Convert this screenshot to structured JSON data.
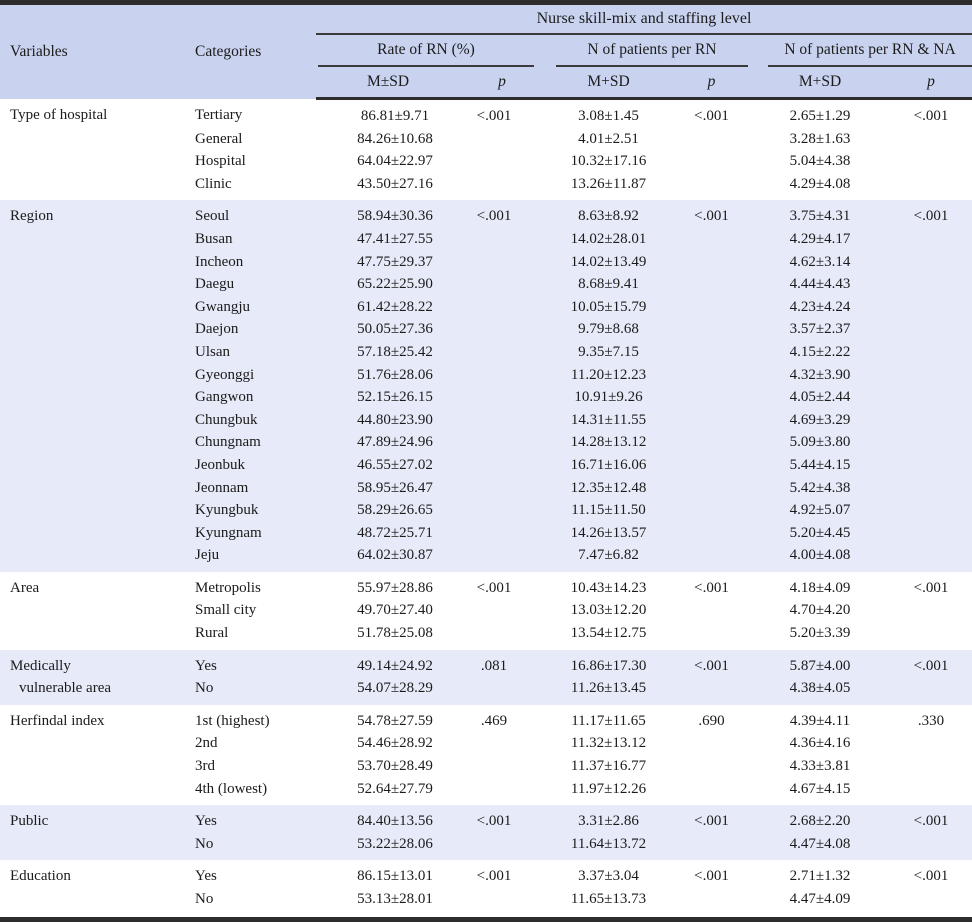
{
  "table": {
    "title_header": "Nurse skill-mix and staffing level",
    "col_headers": {
      "variables": "Variables",
      "categories": "Categories"
    },
    "groups": [
      {
        "label": "Rate of RN (%)",
        "sub": [
          "M±SD",
          "p"
        ]
      },
      {
        "label": "N of patients per RN",
        "sub": [
          "M+SD",
          "p"
        ]
      },
      {
        "label": "N of patients per RN & NA",
        "sub": [
          "M+SD",
          "p"
        ]
      }
    ],
    "sections": [
      {
        "variable_lines": [
          "Type of hospital"
        ],
        "shaded": false,
        "p": [
          "<.001",
          "<.001",
          "<.001"
        ],
        "rows": [
          {
            "category": "Tertiary",
            "values": [
              "86.81±9.71",
              "3.08±1.45",
              "2.65±1.29"
            ]
          },
          {
            "category": "General",
            "values": [
              "84.26±10.68",
              "4.01±2.51",
              "3.28±1.63"
            ]
          },
          {
            "category": "Hospital",
            "values": [
              "64.04±22.97",
              "10.32±17.16",
              "5.04±4.38"
            ]
          },
          {
            "category": "Clinic",
            "values": [
              "43.50±27.16",
              "13.26±11.87",
              "4.29±4.08"
            ]
          }
        ]
      },
      {
        "variable_lines": [
          "Region"
        ],
        "shaded": true,
        "p": [
          "<.001",
          "<.001",
          "<.001"
        ],
        "rows": [
          {
            "category": "Seoul",
            "values": [
              "58.94±30.36",
              "8.63±8.92",
              "3.75±4.31"
            ]
          },
          {
            "category": "Busan",
            "values": [
              "47.41±27.55",
              "14.02±28.01",
              "4.29±4.17"
            ]
          },
          {
            "category": "Incheon",
            "values": [
              "47.75±29.37",
              "14.02±13.49",
              "4.62±3.14"
            ]
          },
          {
            "category": "Daegu",
            "values": [
              "65.22±25.90",
              "8.68±9.41",
              "4.44±4.43"
            ]
          },
          {
            "category": "Gwangju",
            "values": [
              "61.42±28.22",
              "10.05±15.79",
              "4.23±4.24"
            ]
          },
          {
            "category": "Daejon",
            "values": [
              "50.05±27.36",
              "9.79±8.68",
              "3.57±2.37"
            ]
          },
          {
            "category": "Ulsan",
            "values": [
              "57.18±25.42",
              "9.35±7.15",
              "4.15±2.22"
            ]
          },
          {
            "category": "Gyeonggi",
            "values": [
              "51.76±28.06",
              "11.20±12.23",
              "4.32±3.90"
            ]
          },
          {
            "category": "Gangwon",
            "values": [
              "52.15±26.15",
              "10.91±9.26",
              "4.05±2.44"
            ]
          },
          {
            "category": "Chungbuk",
            "values": [
              "44.80±23.90",
              "14.31±11.55",
              "4.69±3.29"
            ]
          },
          {
            "category": "Chungnam",
            "values": [
              "47.89±24.96",
              "14.28±13.12",
              "5.09±3.80"
            ]
          },
          {
            "category": "Jeonbuk",
            "values": [
              "46.55±27.02",
              "16.71±16.06",
              "5.44±4.15"
            ]
          },
          {
            "category": "Jeonnam",
            "values": [
              "58.95±26.47",
              "12.35±12.48",
              "5.42±4.38"
            ]
          },
          {
            "category": "Kyungbuk",
            "values": [
              "58.29±26.65",
              "11.15±11.50",
              "4.92±5.07"
            ]
          },
          {
            "category": "Kyungnam",
            "values": [
              "48.72±25.71",
              "14.26±13.57",
              "5.20±4.45"
            ]
          },
          {
            "category": "Jeju",
            "values": [
              "64.02±30.87",
              "7.47±6.82",
              "4.00±4.08"
            ]
          }
        ]
      },
      {
        "variable_lines": [
          "Area"
        ],
        "shaded": false,
        "p": [
          "<.001",
          "<.001",
          "<.001"
        ],
        "rows": [
          {
            "category": "Metropolis",
            "values": [
              "55.97±28.86",
              "10.43±14.23",
              "4.18±4.09"
            ]
          },
          {
            "category": "Small city",
            "values": [
              "49.70±27.40",
              "13.03±12.20",
              "4.70±4.20"
            ]
          },
          {
            "category": "Rural",
            "values": [
              "51.78±25.08",
              "13.54±12.75",
              "5.20±3.39"
            ]
          }
        ]
      },
      {
        "variable_lines": [
          "Medically",
          "vulnerable area"
        ],
        "shaded": true,
        "p": [
          ".081",
          "<.001",
          "<.001"
        ],
        "rows": [
          {
            "category": "Yes",
            "values": [
              "49.14±24.92",
              "16.86±17.30",
              "5.87±4.00"
            ]
          },
          {
            "category": "No",
            "values": [
              "54.07±28.29",
              "11.26±13.45",
              "4.38±4.05"
            ]
          }
        ]
      },
      {
        "variable_lines": [
          "Herfindal index"
        ],
        "shaded": false,
        "p": [
          ".469",
          ".690",
          ".330"
        ],
        "rows": [
          {
            "category": "1st (highest)",
            "values": [
              "54.78±27.59",
              "11.17±11.65",
              "4.39±4.11"
            ]
          },
          {
            "category": "2nd",
            "values": [
              "54.46±28.92",
              "11.32±13.12",
              "4.36±4.16"
            ]
          },
          {
            "category": "3rd",
            "values": [
              "53.70±28.49",
              "11.37±16.77",
              "4.33±3.81"
            ]
          },
          {
            "category": "4th (lowest)",
            "values": [
              "52.64±27.79",
              "11.97±12.26",
              "4.67±4.15"
            ]
          }
        ]
      },
      {
        "variable_lines": [
          "Public"
        ],
        "shaded": true,
        "p": [
          "<.001",
          "<.001",
          "<.001"
        ],
        "rows": [
          {
            "category": "Yes",
            "values": [
              "84.40±13.56",
              "3.31±2.86",
              "2.68±2.20"
            ]
          },
          {
            "category": "No",
            "values": [
              "53.22±28.06",
              "11.64±13.72",
              "4.47±4.08"
            ]
          }
        ]
      },
      {
        "variable_lines": [
          "Education"
        ],
        "shaded": false,
        "p": [
          "<.001",
          "<.001",
          "<.001"
        ],
        "rows": [
          {
            "category": "Yes",
            "values": [
              "86.15±13.01",
              "3.37±3.04",
              "2.71±1.32"
            ]
          },
          {
            "category": "No",
            "values": [
              "53.13±28.01",
              "11.65±13.73",
              "4.47±4.09"
            ]
          }
        ]
      }
    ]
  }
}
